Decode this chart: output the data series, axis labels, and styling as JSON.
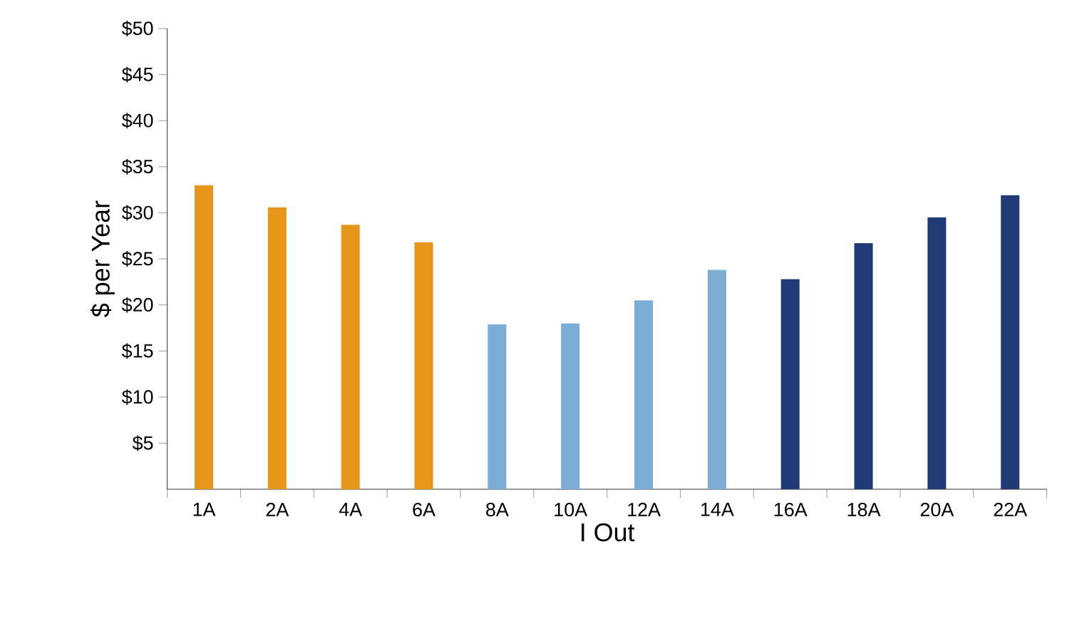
{
  "chart_data": {
    "type": "bar",
    "xlabel": "I Out",
    "ylabel": "$ per Year",
    "categories": [
      "1A",
      "2A",
      "4A",
      "6A",
      "8A",
      "10A",
      "12A",
      "14A",
      "16A",
      "18A",
      "20A",
      "22A"
    ],
    "series": [
      {
        "color": "#e8961a",
        "values": [
          33,
          30.6,
          28.7,
          26.8,
          null,
          null,
          null,
          null,
          null,
          null,
          null,
          null
        ]
      },
      {
        "color": "#7badd5",
        "values": [
          null,
          null,
          null,
          null,
          17.9,
          18.0,
          20.5,
          23.8,
          null,
          null,
          null,
          null
        ]
      },
      {
        "color": "#1f3a75",
        "values": [
          null,
          null,
          null,
          null,
          null,
          null,
          null,
          null,
          22.8,
          26.7,
          29.5,
          31.9
        ]
      }
    ],
    "ylim": [
      0,
      50
    ],
    "yticks": [
      {
        "value": 5,
        "label": "$5"
      },
      {
        "value": 10,
        "label": "$10"
      },
      {
        "value": 15,
        "label": "$15"
      },
      {
        "value": 20,
        "label": "$20"
      },
      {
        "value": 25,
        "label": "$25"
      },
      {
        "value": 30,
        "label": "$30"
      },
      {
        "value": 35,
        "label": "$35"
      },
      {
        "value": 40,
        "label": "$40"
      },
      {
        "value": 45,
        "label": "$45"
      },
      {
        "value": 50,
        "label": "$50"
      }
    ],
    "grid": false
  }
}
